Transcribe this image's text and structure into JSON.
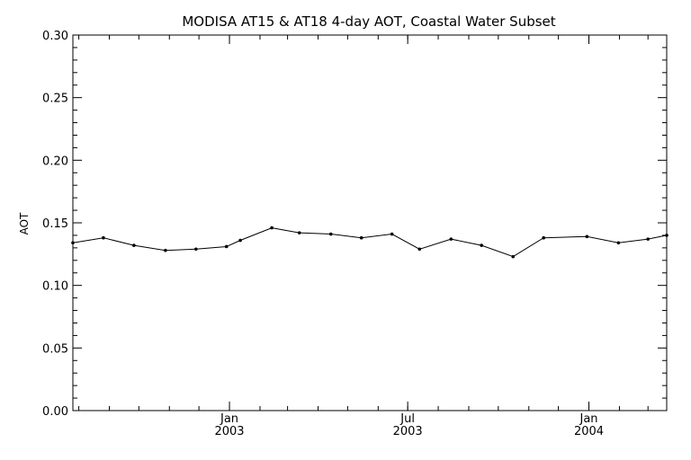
{
  "chart_data": {
    "type": "line",
    "title": "MODISA AT15 & AT18 4-day AOT, Coastal Water Subset",
    "xlabel": "",
    "ylabel": "AOT",
    "ylim": [
      0.0,
      0.3
    ],
    "xlim": [
      "2002-07-26",
      "2004-03-20"
    ],
    "grid": false,
    "y_ticks": [
      "0.00",
      "0.05",
      "0.10",
      "0.15",
      "0.20",
      "0.25",
      "0.30"
    ],
    "x_ticks": [
      {
        "date": "2003-01-01",
        "month": "Jan",
        "year": "2003"
      },
      {
        "date": "2003-07-01",
        "month": "Jul",
        "year": "2003"
      },
      {
        "date": "2004-01-01",
        "month": "Jan",
        "year": "2004"
      }
    ],
    "series": [
      {
        "points": [
          {
            "x": "2002-07-26",
            "y": 0.134
          },
          {
            "x": "2002-08-26",
            "y": 0.138
          },
          {
            "x": "2002-09-26",
            "y": 0.132
          },
          {
            "x": "2002-10-28",
            "y": 0.128
          },
          {
            "x": "2002-11-28",
            "y": 0.129
          },
          {
            "x": "2002-12-29",
            "y": 0.131
          },
          {
            "x": "2003-01-12",
            "y": 0.136
          },
          {
            "x": "2003-02-13",
            "y": 0.146
          },
          {
            "x": "2003-03-13",
            "y": 0.142
          },
          {
            "x": "2003-04-14",
            "y": 0.141
          },
          {
            "x": "2003-05-15",
            "y": 0.138
          },
          {
            "x": "2003-06-15",
            "y": 0.141
          },
          {
            "x": "2003-07-13",
            "y": 0.129
          },
          {
            "x": "2003-08-14",
            "y": 0.137
          },
          {
            "x": "2003-09-14",
            "y": 0.132
          },
          {
            "x": "2003-10-16",
            "y": 0.123
          },
          {
            "x": "2003-11-16",
            "y": 0.138
          },
          {
            "x": "2003-12-30",
            "y": 0.139
          },
          {
            "x": "2004-01-31",
            "y": 0.134
          },
          {
            "x": "2004-03-01",
            "y": 0.137
          },
          {
            "x": "2004-03-20",
            "y": 0.14
          }
        ]
      }
    ],
    "colors": {
      "line": "#000000",
      "axes": "#000000",
      "background": "#ffffff"
    }
  }
}
